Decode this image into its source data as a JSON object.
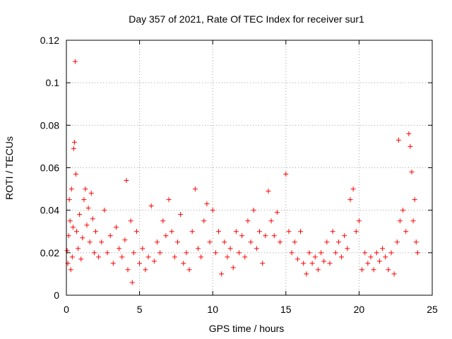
{
  "chart_data": {
    "type": "scatter",
    "title": "Day 357 of 2021, Rate Of TEC Index for receiver sur1",
    "xlabel": "GPS time / hours",
    "ylabel": "ROTI / TECUs",
    "xlim": [
      0,
      25
    ],
    "ylim": [
      0,
      0.12
    ],
    "x_ticks": [
      0,
      5,
      10,
      15,
      20,
      25
    ],
    "x_tick_labels": [
      "0",
      "5",
      "10",
      "15",
      "20",
      "25"
    ],
    "y_ticks": [
      0,
      0.02,
      0.04,
      0.06,
      0.08,
      0.1,
      0.12
    ],
    "y_tick_labels": [
      "0",
      "0.02",
      "0.04",
      "0.06",
      "0.08",
      "0.1",
      "0.12"
    ],
    "grid": true,
    "marker": "plus",
    "colors": {
      "series": "#ff0000",
      "axes": "#000000",
      "grid": "#a0a0a0"
    },
    "series": [
      {
        "points": [
          [
            0.05,
            0.021
          ],
          [
            0.1,
            0.015
          ],
          [
            0.15,
            0.028
          ],
          [
            0.2,
            0.045
          ],
          [
            0.25,
            0.035
          ],
          [
            0.3,
            0.012
          ],
          [
            0.35,
            0.05
          ],
          [
            0.4,
            0.018
          ],
          [
            0.45,
            0.032
          ],
          [
            0.5,
            0.069
          ],
          [
            0.55,
            0.072
          ],
          [
            0.6,
            0.11
          ],
          [
            0.65,
            0.057
          ],
          [
            0.7,
            0.03
          ],
          [
            0.8,
            0.022
          ],
          [
            0.9,
            0.038
          ],
          [
            1.0,
            0.017
          ],
          [
            1.1,
            0.027
          ],
          [
            1.2,
            0.045
          ],
          [
            1.3,
            0.05
          ],
          [
            1.4,
            0.033
          ],
          [
            1.5,
            0.041
          ],
          [
            1.6,
            0.025
          ],
          [
            1.7,
            0.048
          ],
          [
            1.8,
            0.036
          ],
          [
            1.9,
            0.02
          ],
          [
            2.0,
            0.03
          ],
          [
            2.2,
            0.018
          ],
          [
            2.4,
            0.025
          ],
          [
            2.6,
            0.04
          ],
          [
            2.8,
            0.02
          ],
          [
            3.0,
            0.028
          ],
          [
            3.2,
            0.015
          ],
          [
            3.4,
            0.032
          ],
          [
            3.6,
            0.022
          ],
          [
            3.8,
            0.018
          ],
          [
            4.0,
            0.026
          ],
          [
            4.1,
            0.054
          ],
          [
            4.2,
            0.012
          ],
          [
            4.4,
            0.035
          ],
          [
            4.5,
            0.006
          ],
          [
            4.6,
            0.02
          ],
          [
            4.8,
            0.03
          ],
          [
            5.0,
            0.015
          ],
          [
            5.2,
            0.022
          ],
          [
            5.4,
            0.012
          ],
          [
            5.6,
            0.018
          ],
          [
            5.8,
            0.042
          ],
          [
            6.0,
            0.016
          ],
          [
            6.2,
            0.025
          ],
          [
            6.4,
            0.02
          ],
          [
            6.6,
            0.035
          ],
          [
            6.8,
            0.028
          ],
          [
            7.0,
            0.045
          ],
          [
            7.2,
            0.03
          ],
          [
            7.4,
            0.018
          ],
          [
            7.6,
            0.025
          ],
          [
            7.8,
            0.038
          ],
          [
            8.0,
            0.015
          ],
          [
            8.2,
            0.02
          ],
          [
            8.4,
            0.012
          ],
          [
            8.6,
            0.03
          ],
          [
            8.8,
            0.05
          ],
          [
            9.0,
            0.022
          ],
          [
            9.2,
            0.018
          ],
          [
            9.4,
            0.035
          ],
          [
            9.6,
            0.043
          ],
          [
            9.8,
            0.025
          ],
          [
            10.0,
            0.04
          ],
          [
            10.2,
            0.02
          ],
          [
            10.4,
            0.03
          ],
          [
            10.6,
            0.01
          ],
          [
            10.8,
            0.025
          ],
          [
            11.0,
            0.018
          ],
          [
            11.2,
            0.022
          ],
          [
            11.4,
            0.013
          ],
          [
            11.6,
            0.03
          ],
          [
            11.8,
            0.02
          ],
          [
            12.0,
            0.028
          ],
          [
            12.2,
            0.018
          ],
          [
            12.4,
            0.035
          ],
          [
            12.6,
            0.025
          ],
          [
            12.8,
            0.04
          ],
          [
            13.0,
            0.022
          ],
          [
            13.2,
            0.03
          ],
          [
            13.4,
            0.015
          ],
          [
            13.6,
            0.028
          ],
          [
            13.8,
            0.049
          ],
          [
            14.0,
            0.035
          ],
          [
            14.2,
            0.028
          ],
          [
            14.4,
            0.039
          ],
          [
            14.6,
            0.025
          ],
          [
            15.0,
            0.057
          ],
          [
            15.2,
            0.03
          ],
          [
            15.4,
            0.02
          ],
          [
            15.6,
            0.025
          ],
          [
            15.8,
            0.017
          ],
          [
            16.0,
            0.03
          ],
          [
            16.2,
            0.015
          ],
          [
            16.4,
            0.01
          ],
          [
            16.6,
            0.02
          ],
          [
            16.8,
            0.015
          ],
          [
            17.0,
            0.018
          ],
          [
            17.2,
            0.012
          ],
          [
            17.4,
            0.02
          ],
          [
            17.6,
            0.016
          ],
          [
            17.8,
            0.025
          ],
          [
            18.0,
            0.015
          ],
          [
            18.2,
            0.03
          ],
          [
            18.4,
            0.02
          ],
          [
            18.6,
            0.025
          ],
          [
            18.8,
            0.018
          ],
          [
            19.0,
            0.028
          ],
          [
            19.2,
            0.022
          ],
          [
            19.4,
            0.045
          ],
          [
            19.6,
            0.05
          ],
          [
            19.8,
            0.03
          ],
          [
            20.0,
            0.035
          ],
          [
            20.2,
            0.012
          ],
          [
            20.4,
            0.02
          ],
          [
            20.6,
            0.015
          ],
          [
            20.8,
            0.018
          ],
          [
            21.0,
            0.012
          ],
          [
            21.2,
            0.02
          ],
          [
            21.4,
            0.016
          ],
          [
            21.6,
            0.022
          ],
          [
            21.8,
            0.018
          ],
          [
            22.0,
            0.012
          ],
          [
            22.2,
            0.02
          ],
          [
            22.4,
            0.01
          ],
          [
            22.6,
            0.025
          ],
          [
            22.7,
            0.073
          ],
          [
            22.8,
            0.035
          ],
          [
            23.0,
            0.04
          ],
          [
            23.2,
            0.03
          ],
          [
            23.4,
            0.076
          ],
          [
            23.5,
            0.07
          ],
          [
            23.6,
            0.058
          ],
          [
            23.7,
            0.035
          ],
          [
            23.8,
            0.045
          ],
          [
            23.9,
            0.025
          ],
          [
            24.0,
            0.02
          ]
        ]
      }
    ]
  }
}
